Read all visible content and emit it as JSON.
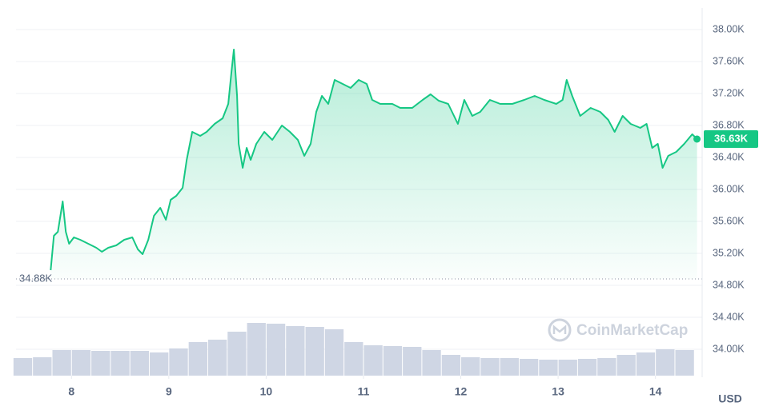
{
  "chart_data": {
    "type": "line",
    "currency": "USD",
    "watermark": "CoinMarketCap",
    "color": "#16c784",
    "x": [
      7.786,
      7.819,
      7.86,
      7.91,
      7.942,
      7.975,
      8.025,
      8.09,
      8.173,
      8.255,
      8.312,
      8.378,
      8.46,
      8.542,
      8.625,
      8.682,
      8.731,
      8.789,
      8.847,
      8.912,
      8.97,
      9.019,
      9.077,
      9.142,
      9.184,
      9.241,
      9.323,
      9.389,
      9.471,
      9.553,
      9.611,
      9.644,
      9.668,
      9.701,
      9.718,
      9.759,
      9.8,
      9.841,
      9.899,
      9.981,
      10.063,
      10.162,
      10.244,
      10.326,
      10.392,
      10.457,
      10.515,
      10.573,
      10.638,
      10.704,
      10.786,
      10.868,
      10.951,
      11.033,
      11.09,
      11.173,
      11.296,
      11.378,
      11.501,
      11.608,
      11.69,
      11.773,
      11.871,
      11.97,
      12.036,
      12.118,
      12.2,
      12.299,
      12.405,
      12.529,
      12.652,
      12.759,
      12.858,
      12.981,
      13.046,
      13.088,
      13.145,
      13.227,
      13.334,
      13.433,
      13.515,
      13.581,
      13.663,
      13.745,
      13.844,
      13.909,
      13.967,
      14.024,
      14.074,
      14.131,
      14.214,
      14.296,
      14.378,
      14.427
    ],
    "values": [
      34990,
      35420,
      35470,
      35850,
      35470,
      35320,
      35400,
      35370,
      35320,
      35270,
      35220,
      35270,
      35300,
      35370,
      35400,
      35250,
      35190,
      35370,
      35670,
      35770,
      35620,
      35870,
      35920,
      36020,
      36370,
      36720,
      36670,
      36720,
      36820,
      36890,
      37070,
      37470,
      37750,
      37170,
      36570,
      36270,
      36520,
      36370,
      36570,
      36720,
      36620,
      36800,
      36720,
      36620,
      36420,
      36570,
      36970,
      37170,
      37070,
      37370,
      37320,
      37270,
      37370,
      37320,
      37120,
      37070,
      37070,
      37020,
      37020,
      37120,
      37190,
      37110,
      37070,
      36820,
      37120,
      36920,
      36970,
      37120,
      37070,
      37070,
      37120,
      37170,
      37120,
      37070,
      37120,
      37370,
      37170,
      36920,
      37020,
      36970,
      36870,
      36720,
      36920,
      36820,
      36770,
      36820,
      36520,
      36570,
      36270,
      36420,
      36470,
      36570,
      36690,
      36630
    ],
    "open_price": {
      "value": 34880,
      "label": "34.88K"
    },
    "last_price": {
      "value": 36630,
      "label": "36.63K"
    },
    "xlim": [
      7.43,
      14.48
    ],
    "xticks": [
      8,
      9,
      10,
      11,
      12,
      13,
      14
    ],
    "ylim": [
      33670,
      38270
    ],
    "yticks": [
      {
        "value": 34000,
        "label": "34.00K"
      },
      {
        "value": 34400,
        "label": "34.40K"
      },
      {
        "value": 34800,
        "label": "34.80K"
      },
      {
        "value": 35200,
        "label": "35.20K"
      },
      {
        "value": 35600,
        "label": "35.60K"
      },
      {
        "value": 36000,
        "label": "36.00K"
      },
      {
        "value": 36400,
        "label": "36.40K"
      },
      {
        "value": 36800,
        "label": "36.80K"
      },
      {
        "value": 37200,
        "label": "37.20K"
      },
      {
        "value": 37600,
        "label": "37.60K"
      },
      {
        "value": 38000,
        "label": "38.00K"
      }
    ],
    "grid": true,
    "volume": {
      "color": "#cfd6e4",
      "ylim": [
        0,
        100
      ],
      "x": [
        7.5,
        7.7,
        7.9,
        8.1,
        8.3,
        8.5,
        8.7,
        8.9,
        9.1,
        9.3,
        9.5,
        9.7,
        9.9,
        10.1,
        10.3,
        10.5,
        10.7,
        10.9,
        11.1,
        11.3,
        11.5,
        11.7,
        11.9,
        12.1,
        12.3,
        12.5,
        12.7,
        12.9,
        13.1,
        13.3,
        13.5,
        13.7,
        13.9,
        14.1,
        14.3
      ],
      "values": [
        22,
        23,
        32,
        32,
        31,
        31,
        31,
        29,
        34,
        42,
        45,
        55,
        66,
        65,
        62,
        61,
        58,
        42,
        38,
        37,
        36,
        32,
        26,
        23,
        22,
        22,
        21,
        20,
        20,
        21,
        22,
        26,
        29,
        33,
        32
      ]
    }
  }
}
